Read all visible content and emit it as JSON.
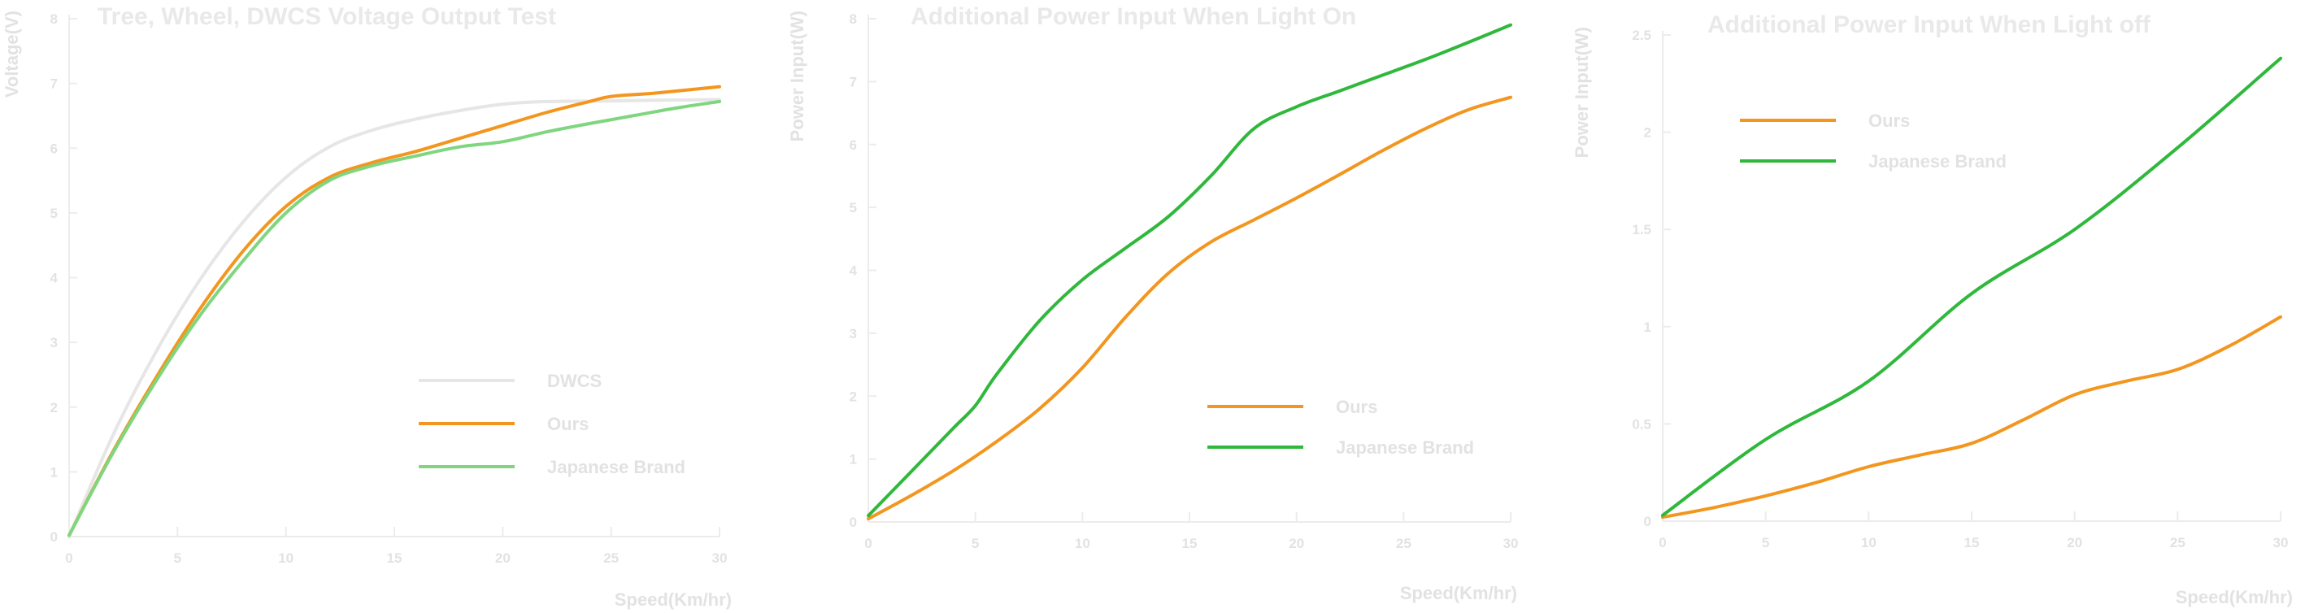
{
  "colors": {
    "orange": "#f2961f",
    "green": "#2fb83c",
    "lightgreen": "#7fd67f",
    "grey": "#e6e6e6"
  },
  "chart_data": [
    {
      "type": "line",
      "title": "Tree, Wheel, DWCS Voltage Output Test",
      "xlabel": "Speed(Km/hr)",
      "ylabel": "Voltage(V)",
      "xlim": [
        0,
        30
      ],
      "ylim": [
        0,
        8
      ],
      "xticks": [
        "0",
        "5",
        "10",
        "15",
        "20",
        "25",
        "30"
      ],
      "yticks": [
        "0",
        "1",
        "2",
        "3",
        "4",
        "5",
        "6",
        "7",
        "8"
      ],
      "legend_position": "lower-right",
      "series": [
        {
          "name": "DWCS",
          "color": "#e6e6e6",
          "x": [
            0,
            2,
            4,
            6,
            8,
            10,
            12,
            14,
            16,
            18,
            20,
            22,
            25,
            27,
            30
          ],
          "y": [
            0,
            1.55,
            2.85,
            3.95,
            4.85,
            5.55,
            6.02,
            6.28,
            6.45,
            6.58,
            6.68,
            6.72,
            6.73,
            6.74,
            6.75
          ]
        },
        {
          "name": "Ours",
          "color": "#f2961f",
          "x": [
            0,
            2,
            4,
            6,
            8,
            10,
            12,
            14,
            16,
            18,
            20,
            22,
            24,
            25,
            27,
            30
          ],
          "y": [
            0.02,
            1.3,
            2.45,
            3.5,
            4.4,
            5.1,
            5.55,
            5.78,
            5.95,
            6.15,
            6.35,
            6.55,
            6.72,
            6.8,
            6.85,
            6.95
          ]
        },
        {
          "name": "Japanese Brand",
          "color": "#7fd67f",
          "x": [
            0,
            2,
            4,
            6,
            8,
            10,
            12,
            14,
            16,
            18,
            20,
            22,
            24,
            26,
            28,
            30
          ],
          "y": [
            0.02,
            1.28,
            2.4,
            3.4,
            4.25,
            5.0,
            5.5,
            5.73,
            5.88,
            6.02,
            6.1,
            6.25,
            6.38,
            6.5,
            6.62,
            6.72
          ]
        }
      ]
    },
    {
      "type": "line",
      "title": "Additional Power Input When Light On",
      "xlabel": "Speed(Km/hr)",
      "ylabel": "Power Input(W)",
      "xlim": [
        0,
        30
      ],
      "ylim": [
        0,
        8
      ],
      "xticks": [
        "0",
        "5",
        "10",
        "15",
        "20",
        "25",
        "30"
      ],
      "yticks": [
        "0",
        "1",
        "2",
        "3",
        "4",
        "5",
        "6",
        "7",
        "8"
      ],
      "legend_position": "lower-right",
      "series": [
        {
          "name": "Ours",
          "color": "#f2961f",
          "x": [
            0,
            2,
            4,
            6,
            8,
            10,
            12,
            14,
            16,
            18,
            20,
            22,
            24,
            26,
            28,
            30
          ],
          "y": [
            0.05,
            0.42,
            0.82,
            1.28,
            1.8,
            2.45,
            3.25,
            3.95,
            4.45,
            4.8,
            5.15,
            5.52,
            5.9,
            6.25,
            6.55,
            6.75
          ]
        },
        {
          "name": "Japanese Brand",
          "color": "#2fb83c",
          "x": [
            0,
            2,
            4,
            5,
            6,
            8,
            10,
            12,
            14,
            16,
            18,
            20,
            22,
            24,
            26,
            28,
            30
          ],
          "y": [
            0.1,
            0.8,
            1.5,
            1.85,
            2.35,
            3.2,
            3.85,
            4.35,
            4.85,
            5.5,
            6.25,
            6.6,
            6.85,
            7.1,
            7.35,
            7.62,
            7.9
          ]
        }
      ]
    },
    {
      "type": "line",
      "title": "Additional Power Input When Light off",
      "xlabel": "Speed(Km/hr)",
      "ylabel": "Power Input(W)",
      "xlim": [
        0,
        30
      ],
      "ylim": [
        0,
        2.5
      ],
      "xticks": [
        "0",
        "5",
        "10",
        "15",
        "20",
        "25",
        "30"
      ],
      "yticks": [
        "0",
        "0.5",
        "1",
        "1.5",
        "2",
        "2.5"
      ],
      "legend_position": "upper-left",
      "series": [
        {
          "name": "Ours",
          "color": "#f2961f",
          "x": [
            0,
            2.5,
            5,
            7.5,
            10,
            12.5,
            15,
            17.5,
            20,
            22.5,
            25,
            27.5,
            30
          ],
          "y": [
            0.02,
            0.07,
            0.13,
            0.2,
            0.28,
            0.34,
            0.4,
            0.52,
            0.65,
            0.72,
            0.78,
            0.9,
            1.05
          ]
        },
        {
          "name": "Japanese Brand",
          "color": "#2fb83c",
          "x": [
            0,
            5,
            10,
            15,
            20,
            25,
            30
          ],
          "y": [
            0.03,
            0.42,
            0.72,
            1.17,
            1.5,
            1.92,
            2.38
          ]
        }
      ]
    }
  ]
}
